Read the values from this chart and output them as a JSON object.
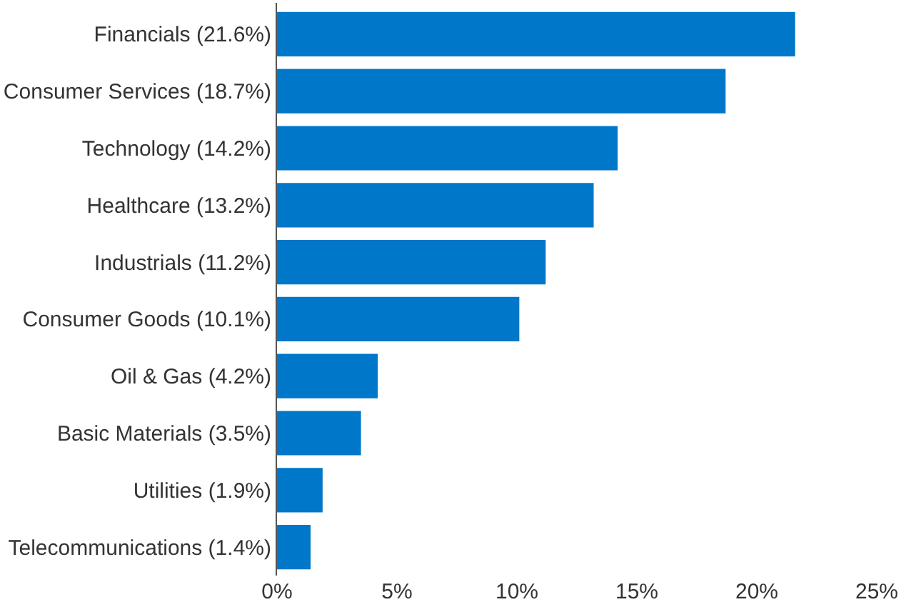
{
  "chart_data": {
    "type": "bar",
    "orientation": "horizontal",
    "categories": [
      "Financials (21.6%)",
      "Consumer Services (18.7%)",
      "Technology (14.2%)",
      "Healthcare (13.2%)",
      "Industrials (11.2%)",
      "Consumer Goods (10.1%)",
      "Oil & Gas (4.2%)",
      "Basic Materials (3.5%)",
      "Utilities (1.9%)",
      "Telecommunications (1.4%)"
    ],
    "values": [
      21.6,
      18.7,
      14.2,
      13.2,
      11.2,
      10.1,
      4.2,
      3.5,
      1.9,
      1.4
    ],
    "color": "#0077c8",
    "xlim": [
      0,
      25
    ],
    "xticks": [
      {
        "value": 0,
        "label": "0%"
      },
      {
        "value": 5,
        "label": "5%"
      },
      {
        "value": 10,
        "label": "10%"
      },
      {
        "value": 15,
        "label": "15%"
      },
      {
        "value": 20,
        "label": "20%"
      },
      {
        "value": 25,
        "label": "25%"
      }
    ],
    "grid": false,
    "legend": false
  }
}
